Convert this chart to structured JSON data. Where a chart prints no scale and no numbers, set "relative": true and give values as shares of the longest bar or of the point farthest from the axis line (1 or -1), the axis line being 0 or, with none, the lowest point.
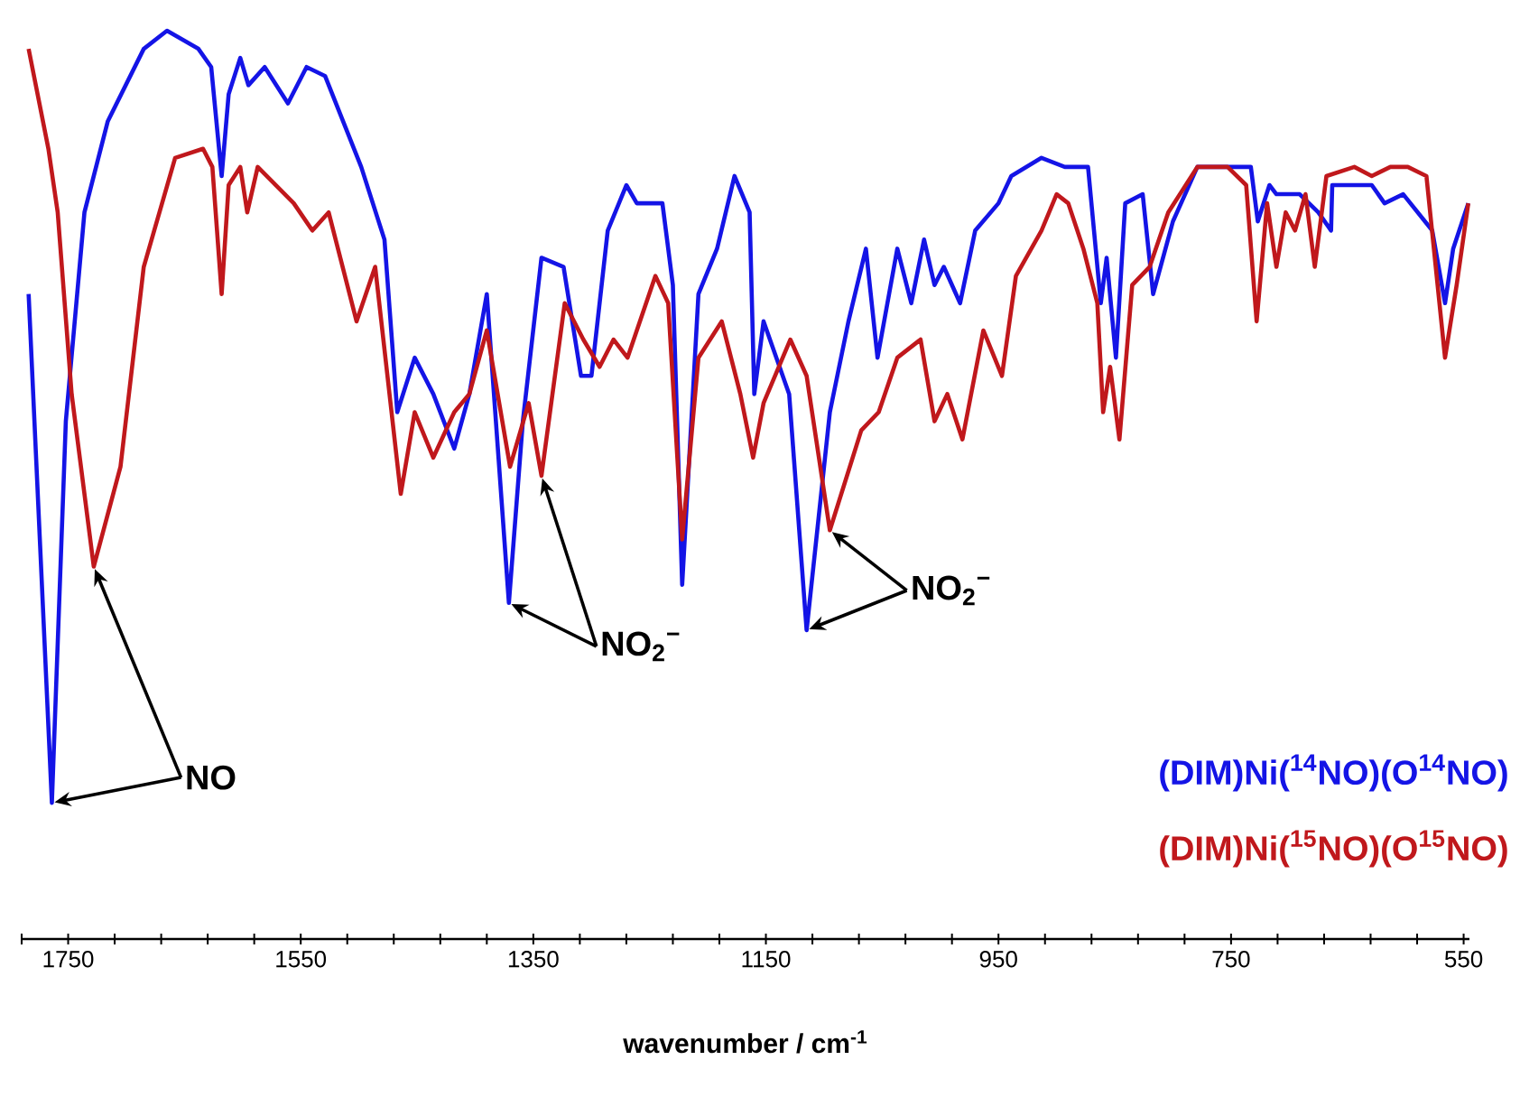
{
  "chart_data": {
    "type": "line",
    "relative": true,
    "xlabel": "wavenumber / cm$^{-1}$",
    "xlim": [
      1790,
      545
    ],
    "xticks": [
      {
        "value": 1790,
        "label": null
      },
      1750,
      {
        "value": 1710,
        "label": null
      },
      {
        "value": 1670,
        "label": null
      },
      {
        "value": 1630,
        "label": null
      },
      {
        "value": 1590,
        "label": null
      },
      1550,
      {
        "value": 1510,
        "label": null
      },
      {
        "value": 1470,
        "label": null
      },
      {
        "value": 1430,
        "label": null
      },
      {
        "value": 1390,
        "label": null
      },
      1350,
      {
        "value": 1310,
        "label": null
      },
      {
        "value": 1270,
        "label": null
      },
      {
        "value": 1230,
        "label": null
      },
      {
        "value": 1190,
        "label": null
      },
      1150,
      {
        "value": 1110,
        "label": null
      },
      {
        "value": 1070,
        "label": null
      },
      {
        "value": 1030,
        "label": null
      },
      {
        "value": 990,
        "label": null
      },
      950,
      {
        "value": 910,
        "label": null
      },
      {
        "value": 870,
        "label": null
      },
      {
        "value": 830,
        "label": null
      },
      {
        "value": 790,
        "label": null
      },
      750,
      {
        "value": 710,
        "label": null
      },
      {
        "value": 670,
        "label": null
      },
      {
        "value": 630,
        "label": null
      },
      {
        "value": 590,
        "label": null
      },
      550
    ],
    "legend": "bottom right",
    "series": [
      {
        "name": "(DIM)Ni($^{14}$NO)(O$^{14}$NO)",
        "color": "#1414e6",
        "x": [
          1784,
          1764,
          1752,
          1736,
          1716,
          1685,
          1665,
          1638,
          1627,
          1618,
          1612,
          1602,
          1595,
          1581,
          1561,
          1545,
          1529,
          1498,
          1478,
          1467,
          1452,
          1436,
          1418,
          1405,
          1390,
          1371,
          1359,
          1343,
          1324,
          1309,
          1300,
          1286,
          1270,
          1261,
          1239,
          1230,
          1222,
          1208,
          1192,
          1177,
          1164,
          1160,
          1152,
          1141,
          1130,
          1115,
          1095,
          1079,
          1064,
          1054,
          1037,
          1025,
          1014,
          1005,
          997,
          983,
          970,
          950,
          939,
          913,
          893,
          873,
          862,
          857,
          849,
          841,
          826,
          817,
          800,
          779,
          748,
          733,
          727,
          717,
          711,
          691,
          675,
          664,
          663,
          629,
          618,
          602,
          577,
          566,
          559,
          546
        ],
        "values": [
          0.71,
          0.15,
          0.57,
          0.8,
          0.9,
          0.98,
          1.0,
          0.98,
          0.96,
          0.84,
          0.93,
          0.97,
          0.94,
          0.96,
          0.92,
          0.96,
          0.95,
          0.85,
          0.77,
          0.58,
          0.64,
          0.6,
          0.54,
          0.6,
          0.71,
          0.37,
          0.57,
          0.75,
          0.74,
          0.62,
          0.62,
          0.78,
          0.83,
          0.81,
          0.81,
          0.72,
          0.39,
          0.71,
          0.76,
          0.84,
          0.8,
          0.6,
          0.68,
          0.64,
          0.6,
          0.34,
          0.58,
          0.68,
          0.76,
          0.64,
          0.76,
          0.7,
          0.77,
          0.72,
          0.74,
          0.7,
          0.78,
          0.81,
          0.84,
          0.86,
          0.85,
          0.85,
          0.7,
          0.75,
          0.64,
          0.81,
          0.82,
          0.71,
          0.79,
          0.85,
          0.85,
          0.85,
          0.79,
          0.83,
          0.82,
          0.82,
          0.8,
          0.78,
          0.83,
          0.83,
          0.81,
          0.82,
          0.78,
          0.7,
          0.76,
          0.81
        ]
      },
      {
        "name": "(DIM)Ni($^{15}$NO)(O$^{15}$NO)",
        "color": "#c0181c",
        "x": [
          1784,
          1767,
          1759,
          1747,
          1728,
          1705,
          1685,
          1658,
          1634,
          1626,
          1618,
          1612,
          1602,
          1596,
          1587,
          1556,
          1540,
          1526,
          1502,
          1486,
          1464,
          1452,
          1436,
          1418,
          1405,
          1390,
          1370,
          1354,
          1343,
          1323,
          1307,
          1293,
          1281,
          1269,
          1245,
          1234,
          1222,
          1208,
          1188,
          1172,
          1161,
          1152,
          1129,
          1115,
          1095,
          1068,
          1053,
          1037,
          1017,
          1005,
          994,
          981,
          963,
          947,
          935,
          913,
          900,
          890,
          877,
          865,
          860,
          854,
          846,
          835,
          820,
          804,
          779,
          753,
          737,
          728,
          719,
          711,
          703,
          695,
          686,
          678,
          668,
          644,
          629,
          613,
          598,
          582,
          566,
          556,
          546
        ],
        "values": [
          0.98,
          0.87,
          0.8,
          0.6,
          0.41,
          0.52,
          0.74,
          0.86,
          0.87,
          0.85,
          0.71,
          0.83,
          0.85,
          0.8,
          0.85,
          0.81,
          0.78,
          0.8,
          0.68,
          0.74,
          0.49,
          0.58,
          0.53,
          0.58,
          0.6,
          0.67,
          0.52,
          0.59,
          0.51,
          0.7,
          0.66,
          0.63,
          0.66,
          0.64,
          0.73,
          0.7,
          0.44,
          0.64,
          0.68,
          0.6,
          0.53,
          0.59,
          0.66,
          0.62,
          0.45,
          0.56,
          0.58,
          0.64,
          0.66,
          0.57,
          0.6,
          0.55,
          0.67,
          0.62,
          0.73,
          0.78,
          0.82,
          0.81,
          0.76,
          0.7,
          0.58,
          0.63,
          0.55,
          0.72,
          0.74,
          0.8,
          0.85,
          0.85,
          0.83,
          0.68,
          0.81,
          0.74,
          0.8,
          0.78,
          0.82,
          0.74,
          0.84,
          0.85,
          0.84,
          0.85,
          0.85,
          0.84,
          0.64,
          0.72,
          0.81
        ]
      }
    ],
    "annotations": [
      {
        "text": "NO",
        "x": 1764,
        "y": 0.15
      },
      {
        "text": "NO$_{2}$$^{−}$",
        "x": 1371,
        "y": 0.37
      },
      {
        "text": "NO$_{2}$$^{−}$",
        "x": 1115,
        "y": 0.34
      }
    ]
  }
}
